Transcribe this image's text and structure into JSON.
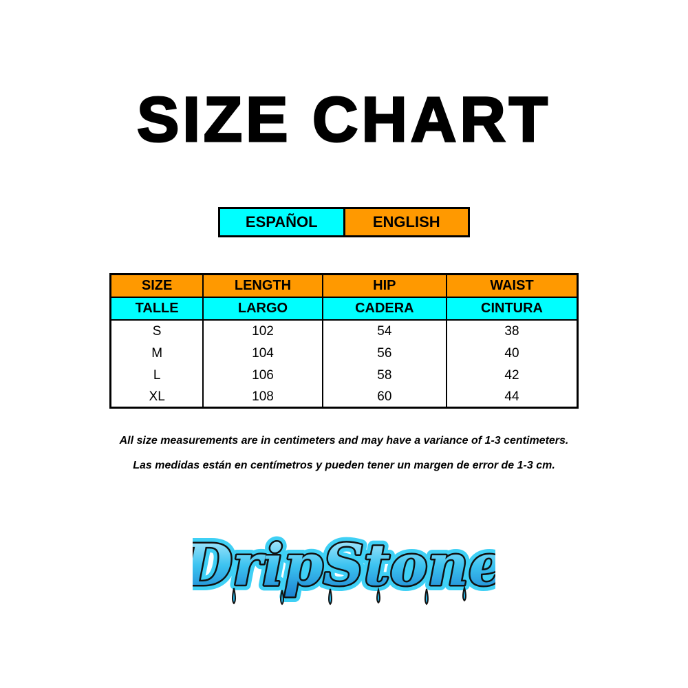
{
  "title": "SIZE CHART",
  "languages": {
    "spanish": "ESPAÑOL",
    "english": "ENGLISH"
  },
  "colors": {
    "orange": "#ff9900",
    "cyan": "#00ffff",
    "logo_blue": "#29b6e8"
  },
  "table": {
    "headers_en": [
      "SIZE",
      "LENGTH",
      "HIP",
      "WAIST"
    ],
    "headers_es": [
      "TALLE",
      "LARGO",
      "CADERA",
      "CINTURA"
    ],
    "rows": [
      [
        "S",
        "102",
        "54",
        "38"
      ],
      [
        "M",
        "104",
        "56",
        "40"
      ],
      [
        "L",
        "106",
        "58",
        "42"
      ],
      [
        "XL",
        "108",
        "60",
        "44"
      ]
    ]
  },
  "notes": {
    "english": "All size measurements are in centimeters and may have a variance of 1-3 centimeters.",
    "spanish": "Las medidas están en centímetros y pueden tener un margen de error de 1-3 cm."
  },
  "logo": {
    "text": "DripStone"
  }
}
